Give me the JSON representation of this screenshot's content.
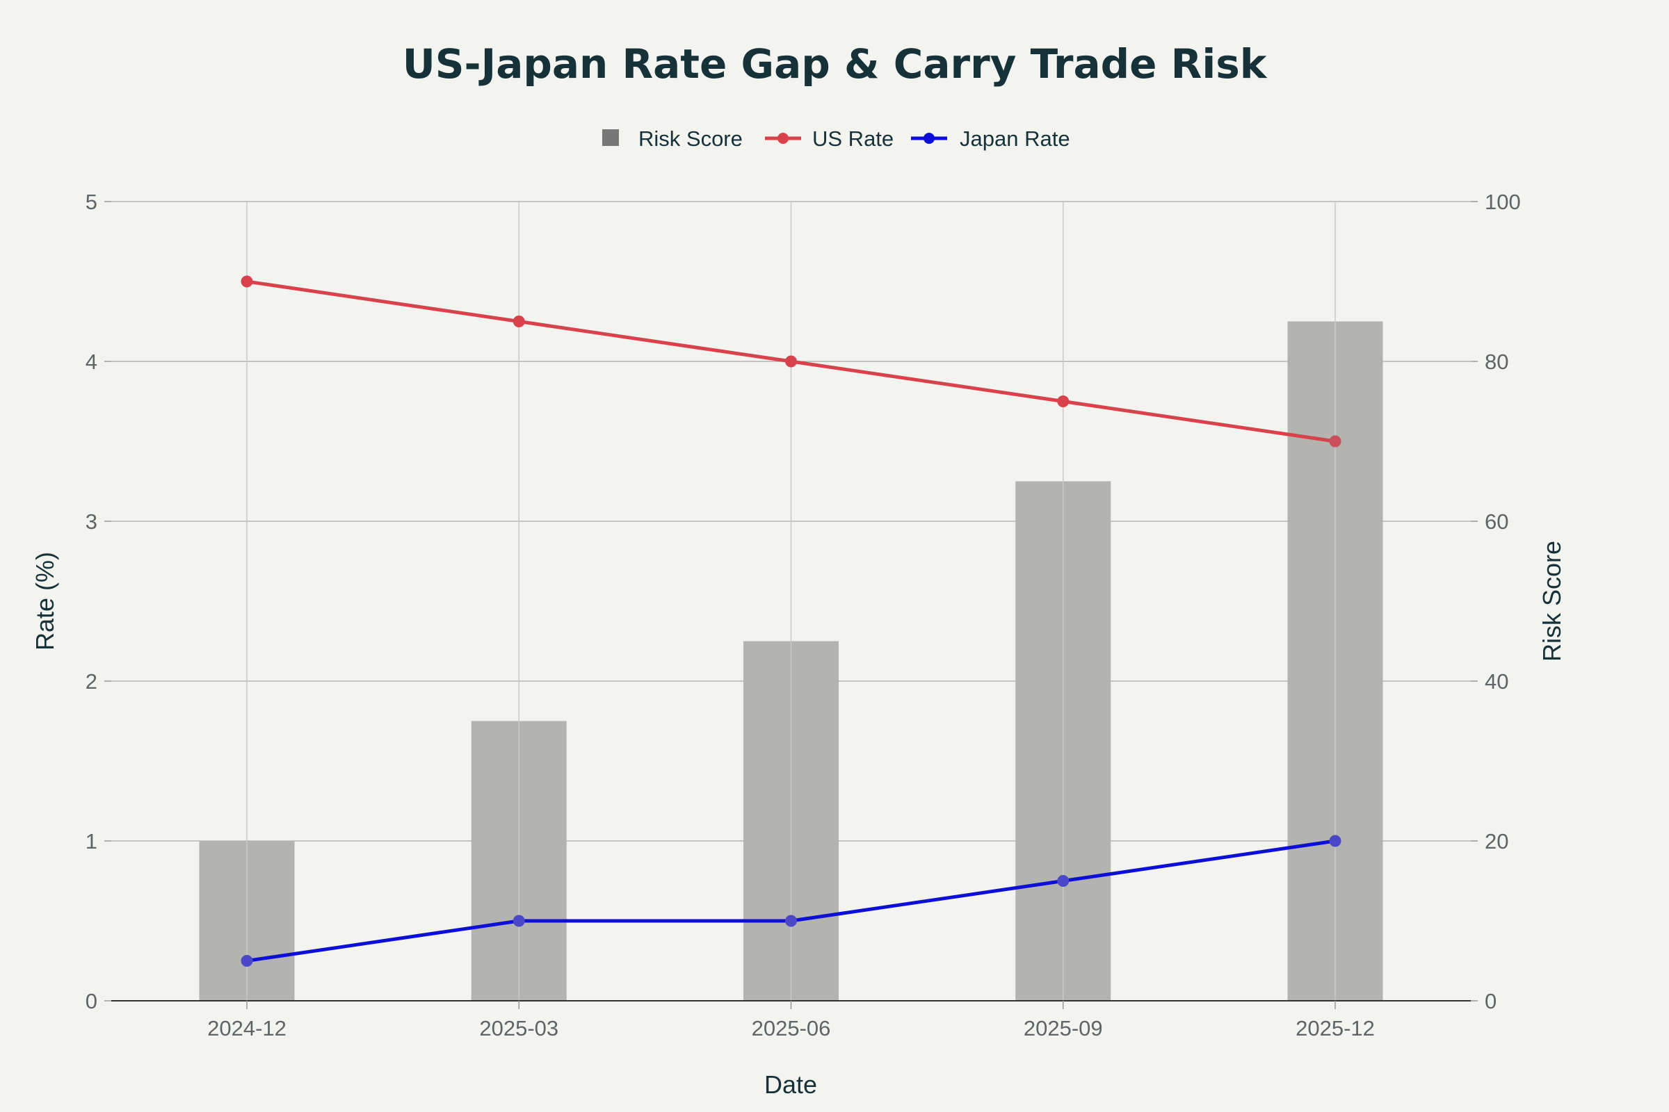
{
  "colors": {
    "background": "#f3f3ef",
    "title": "#163238",
    "bar": "#b3b3af",
    "legend_bar": "#777777",
    "us_line": "#d9424a",
    "us_marker_overlap": "#c9505a",
    "japan_line": "#0c0fd8",
    "japan_marker_overlap": "#4a48c8"
  },
  "chart_data": {
    "type": "bar+line",
    "title": "US-Japan Rate Gap & Carry Trade Risk",
    "xlabel": "Date",
    "ylabel": "Rate (%)",
    "y2label": "Risk Score",
    "categories": [
      "2024-12",
      "2025-03",
      "2025-06",
      "2025-09",
      "2025-12"
    ],
    "ylim": [
      0,
      5
    ],
    "y2lim": [
      0,
      100
    ],
    "yticks": [
      "0",
      "1",
      "2",
      "3",
      "4",
      "5"
    ],
    "y2ticks": [
      "0",
      "20",
      "40",
      "60",
      "80",
      "100"
    ],
    "grid": true,
    "legend_position": "top-center",
    "series": [
      {
        "name": "Risk Score",
        "type": "bar",
        "axis": "y2",
        "values": [
          20,
          35,
          45,
          65,
          85
        ]
      },
      {
        "name": "US Rate",
        "type": "line",
        "axis": "y",
        "values": [
          4.5,
          4.25,
          4.0,
          3.75,
          3.5
        ]
      },
      {
        "name": "Japan Rate",
        "type": "line",
        "axis": "y",
        "values": [
          0.25,
          0.5,
          0.5,
          0.75,
          1.0
        ]
      }
    ],
    "legend": [
      "Risk Score",
      "US Rate",
      "Japan Rate"
    ]
  }
}
